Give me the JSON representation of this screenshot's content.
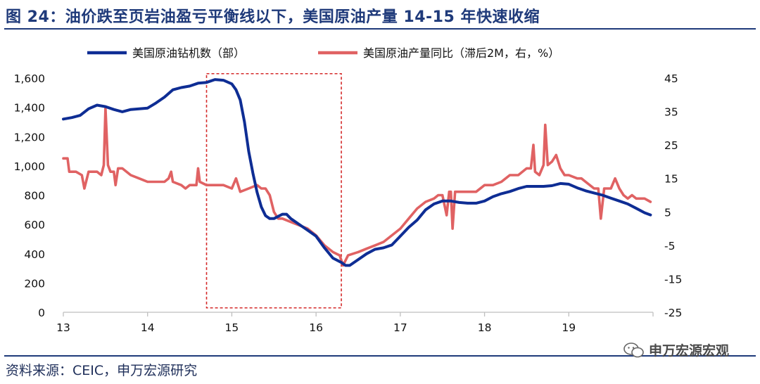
{
  "header": {
    "title": "图 24：油价跌至页岩油盈亏平衡线以下，美国原油产量 14-15 年快速收缩"
  },
  "footer": {
    "source": "资料来源：CEIC，申万宏源研究",
    "watermark": "申万宏源宏观"
  },
  "colors": {
    "rig_series": "#0e2d94",
    "production_series": "#e06263",
    "highlight_box": "#d42a2a",
    "title": "#1f3a7a"
  },
  "chart_data": {
    "type": "line",
    "title": "",
    "xlabel": "",
    "ylabel": "",
    "x_range": [
      2013.0,
      2020.0
    ],
    "x_ticks": [
      {
        "value": 2013,
        "label": "13"
      },
      {
        "value": 2014,
        "label": "14"
      },
      {
        "value": 2015,
        "label": "15"
      },
      {
        "value": 2016,
        "label": "16"
      },
      {
        "value": 2017,
        "label": "17"
      },
      {
        "value": 2018,
        "label": "18"
      },
      {
        "value": 2019,
        "label": "19"
      }
    ],
    "y_left": {
      "range": [
        0,
        1600
      ],
      "ticks": [
        0,
        200,
        400,
        600,
        800,
        1000,
        1200,
        1400,
        1600
      ],
      "tick_labels": [
        "0",
        "200",
        "400",
        "600",
        "800",
        "1,000",
        "1,200",
        "1,400",
        "1,600"
      ]
    },
    "y_right": {
      "range": [
        -25,
        45
      ],
      "ticks": [
        -25,
        -15,
        -5,
        5,
        15,
        25,
        35,
        45
      ],
      "tick_labels": [
        "-25",
        "-15",
        "-5",
        "5",
        "15",
        "25",
        "35",
        "45"
      ]
    },
    "legend_position": "top",
    "grid": false,
    "highlight_region": {
      "x_start": 2014.7,
      "x_end": 2016.3,
      "y_start": 30,
      "y_end": 1630,
      "axis": "left"
    },
    "series": [
      {
        "name": "美国原油钻机数（部）",
        "axis": "left",
        "points": [
          [
            2013.0,
            1320
          ],
          [
            2013.1,
            1330
          ],
          [
            2013.2,
            1345
          ],
          [
            2013.3,
            1390
          ],
          [
            2013.4,
            1415
          ],
          [
            2013.5,
            1405
          ],
          [
            2013.6,
            1385
          ],
          [
            2013.7,
            1370
          ],
          [
            2013.8,
            1385
          ],
          [
            2013.9,
            1390
          ],
          [
            2014.0,
            1395
          ],
          [
            2014.1,
            1430
          ],
          [
            2014.2,
            1470
          ],
          [
            2014.3,
            1520
          ],
          [
            2014.4,
            1535
          ],
          [
            2014.5,
            1545
          ],
          [
            2014.6,
            1565
          ],
          [
            2014.7,
            1570
          ],
          [
            2014.8,
            1590
          ],
          [
            2014.9,
            1585
          ],
          [
            2015.0,
            1560
          ],
          [
            2015.05,
            1520
          ],
          [
            2015.1,
            1450
          ],
          [
            2015.15,
            1300
          ],
          [
            2015.2,
            1100
          ],
          [
            2015.25,
            950
          ],
          [
            2015.3,
            820
          ],
          [
            2015.35,
            720
          ],
          [
            2015.4,
            660
          ],
          [
            2015.45,
            640
          ],
          [
            2015.5,
            640
          ],
          [
            2015.55,
            655
          ],
          [
            2015.6,
            670
          ],
          [
            2015.65,
            670
          ],
          [
            2015.7,
            640
          ],
          [
            2015.8,
            600
          ],
          [
            2015.9,
            560
          ],
          [
            2016.0,
            520
          ],
          [
            2016.1,
            440
          ],
          [
            2016.2,
            370
          ],
          [
            2016.3,
            340
          ],
          [
            2016.35,
            320
          ],
          [
            2016.4,
            320
          ],
          [
            2016.5,
            360
          ],
          [
            2016.6,
            400
          ],
          [
            2016.7,
            430
          ],
          [
            2016.8,
            440
          ],
          [
            2016.9,
            460
          ],
          [
            2017.0,
            520
          ],
          [
            2017.1,
            580
          ],
          [
            2017.2,
            630
          ],
          [
            2017.3,
            700
          ],
          [
            2017.4,
            740
          ],
          [
            2017.5,
            760
          ],
          [
            2017.6,
            760
          ],
          [
            2017.7,
            750
          ],
          [
            2017.8,
            745
          ],
          [
            2017.9,
            745
          ],
          [
            2018.0,
            760
          ],
          [
            2018.1,
            790
          ],
          [
            2018.2,
            810
          ],
          [
            2018.3,
            825
          ],
          [
            2018.4,
            845
          ],
          [
            2018.5,
            860
          ],
          [
            2018.6,
            860
          ],
          [
            2018.7,
            860
          ],
          [
            2018.8,
            865
          ],
          [
            2018.9,
            880
          ],
          [
            2019.0,
            875
          ],
          [
            2019.1,
            850
          ],
          [
            2019.2,
            830
          ],
          [
            2019.3,
            815
          ],
          [
            2019.4,
            800
          ],
          [
            2019.5,
            780
          ],
          [
            2019.6,
            760
          ],
          [
            2019.7,
            740
          ],
          [
            2019.8,
            710
          ],
          [
            2019.9,
            680
          ],
          [
            2019.97,
            665
          ]
        ]
      },
      {
        "name": "美国原油产量同比（滞后2M，右，%）",
        "axis": "right",
        "points": [
          [
            2013.0,
            21
          ],
          [
            2013.05,
            21
          ],
          [
            2013.07,
            17
          ],
          [
            2013.15,
            17
          ],
          [
            2013.22,
            16
          ],
          [
            2013.25,
            12
          ],
          [
            2013.3,
            17
          ],
          [
            2013.4,
            17
          ],
          [
            2013.45,
            16
          ],
          [
            2013.48,
            19
          ],
          [
            2013.5,
            36
          ],
          [
            2013.53,
            19
          ],
          [
            2013.56,
            17
          ],
          [
            2013.6,
            17
          ],
          [
            2013.62,
            13
          ],
          [
            2013.65,
            18
          ],
          [
            2013.7,
            18
          ],
          [
            2013.8,
            16
          ],
          [
            2013.9,
            15
          ],
          [
            2014.0,
            14
          ],
          [
            2014.1,
            14
          ],
          [
            2014.2,
            14
          ],
          [
            2014.25,
            15
          ],
          [
            2014.28,
            17
          ],
          [
            2014.3,
            14
          ],
          [
            2014.4,
            13
          ],
          [
            2014.45,
            12
          ],
          [
            2014.5,
            13
          ],
          [
            2014.58,
            13
          ],
          [
            2014.6,
            18
          ],
          [
            2014.62,
            14
          ],
          [
            2014.7,
            13
          ],
          [
            2014.8,
            13
          ],
          [
            2014.9,
            13
          ],
          [
            2015.0,
            12
          ],
          [
            2015.05,
            15
          ],
          [
            2015.1,
            11
          ],
          [
            2015.2,
            12
          ],
          [
            2015.3,
            13
          ],
          [
            2015.35,
            12
          ],
          [
            2015.4,
            12
          ],
          [
            2015.45,
            10
          ],
          [
            2015.5,
            5
          ],
          [
            2015.55,
            3
          ],
          [
            2015.6,
            3
          ],
          [
            2015.7,
            2
          ],
          [
            2015.8,
            1
          ],
          [
            2015.9,
            0
          ],
          [
            2016.0,
            -2
          ],
          [
            2016.1,
            -5
          ],
          [
            2016.2,
            -7
          ],
          [
            2016.28,
            -8
          ],
          [
            2016.32,
            -11
          ],
          [
            2016.38,
            -8
          ],
          [
            2016.5,
            -7
          ],
          [
            2016.6,
            -6
          ],
          [
            2016.7,
            -5
          ],
          [
            2016.8,
            -4
          ],
          [
            2016.9,
            -2
          ],
          [
            2017.0,
            0
          ],
          [
            2017.1,
            3
          ],
          [
            2017.2,
            6
          ],
          [
            2017.3,
            8
          ],
          [
            2017.4,
            9
          ],
          [
            2017.45,
            10
          ],
          [
            2017.5,
            10
          ],
          [
            2017.55,
            4
          ],
          [
            2017.58,
            11
          ],
          [
            2017.6,
            11
          ],
          [
            2017.62,
            0
          ],
          [
            2017.65,
            11
          ],
          [
            2017.7,
            11
          ],
          [
            2017.8,
            11
          ],
          [
            2017.9,
            11
          ],
          [
            2018.0,
            13
          ],
          [
            2018.1,
            13
          ],
          [
            2018.2,
            14
          ],
          [
            2018.3,
            16
          ],
          [
            2018.4,
            16
          ],
          [
            2018.5,
            18
          ],
          [
            2018.55,
            18
          ],
          [
            2018.58,
            25
          ],
          [
            2018.6,
            17
          ],
          [
            2018.65,
            16
          ],
          [
            2018.7,
            19
          ],
          [
            2018.72,
            31
          ],
          [
            2018.75,
            19
          ],
          [
            2018.8,
            20
          ],
          [
            2018.85,
            22
          ],
          [
            2018.9,
            18
          ],
          [
            2018.95,
            16
          ],
          [
            2019.0,
            16
          ],
          [
            2019.1,
            15
          ],
          [
            2019.15,
            15
          ],
          [
            2019.2,
            14
          ],
          [
            2019.3,
            12
          ],
          [
            2019.35,
            12
          ],
          [
            2019.38,
            3
          ],
          [
            2019.42,
            12
          ],
          [
            2019.45,
            12
          ],
          [
            2019.5,
            12
          ],
          [
            2019.55,
            15
          ],
          [
            2019.6,
            12
          ],
          [
            2019.65,
            10
          ],
          [
            2019.7,
            9
          ],
          [
            2019.75,
            10
          ],
          [
            2019.8,
            9
          ],
          [
            2019.85,
            9
          ],
          [
            2019.9,
            9
          ],
          [
            2019.97,
            8
          ]
        ]
      }
    ]
  }
}
